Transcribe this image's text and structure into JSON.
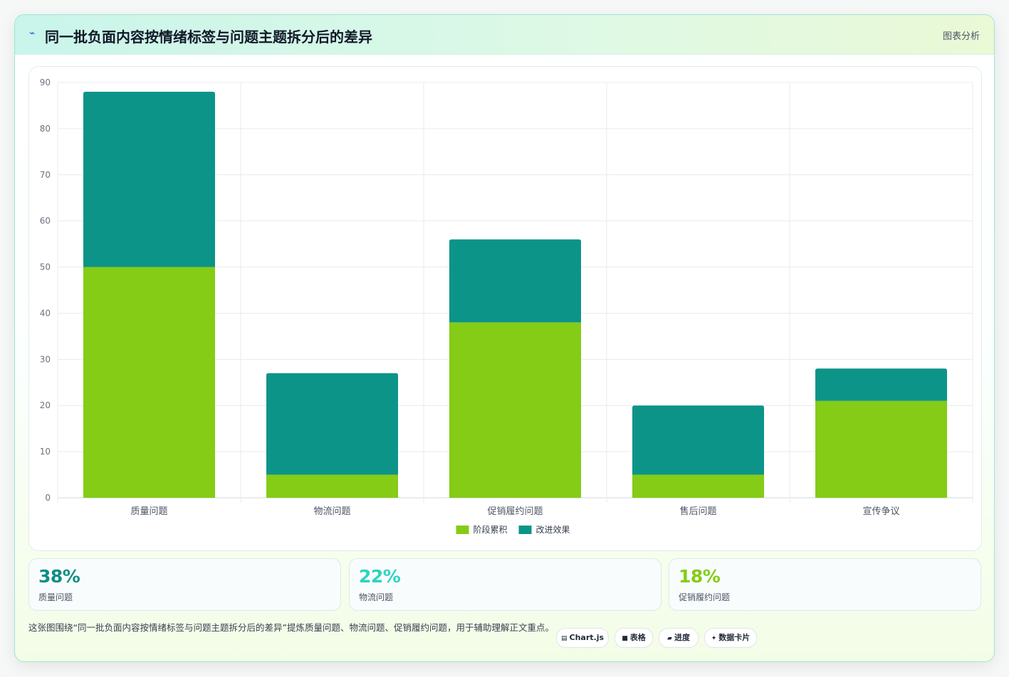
{
  "header": {
    "icon": "lightning-icon",
    "title": "同一批负面内容按情绪标签与问题主题拆分后的差异",
    "tag": "图表分析"
  },
  "chart_data": {
    "type": "bar",
    "stacked": true,
    "categories": [
      "质量问题",
      "物流问题",
      "促销履约问题",
      "售后问题",
      "宣传争议"
    ],
    "series": [
      {
        "name": "阶段累积",
        "color": "#84cc16",
        "values": [
          50,
          5,
          38,
          5,
          21
        ]
      },
      {
        "name": "改进效果",
        "color": "#0d9488",
        "values": [
          38,
          22,
          18,
          15,
          7
        ]
      }
    ],
    "ylim": [
      0,
      90
    ],
    "yticks": [
      "0",
      "10",
      "20",
      "30",
      "40",
      "50",
      "60",
      "70",
      "80",
      "90"
    ],
    "grid": true,
    "legend_position": "bottom"
  },
  "stats": [
    {
      "value": "38%",
      "label": "质量问题",
      "color": "#0f8f83"
    },
    {
      "value": "22%",
      "label": "物流问题",
      "color": "#2dd4bf"
    },
    {
      "value": "18%",
      "label": "促销履约问题",
      "color": "#84cc16"
    }
  ],
  "description": "这张图围绕“同一批负面内容按情绪标签与问题主题拆分后的差异”提炼质量问题、物流问题、促销履约问题，用于辅助理解正文重点。",
  "chips": [
    {
      "icon": "chart-icon",
      "glyph": "▤",
      "label": "Chart.js"
    },
    {
      "icon": "table-icon",
      "glyph": "■",
      "label": "表格"
    },
    {
      "icon": "progress-icon",
      "glyph": "▰",
      "label": "进度"
    },
    {
      "icon": "card-icon",
      "glyph": "✦",
      "label": "数据卡片"
    }
  ]
}
